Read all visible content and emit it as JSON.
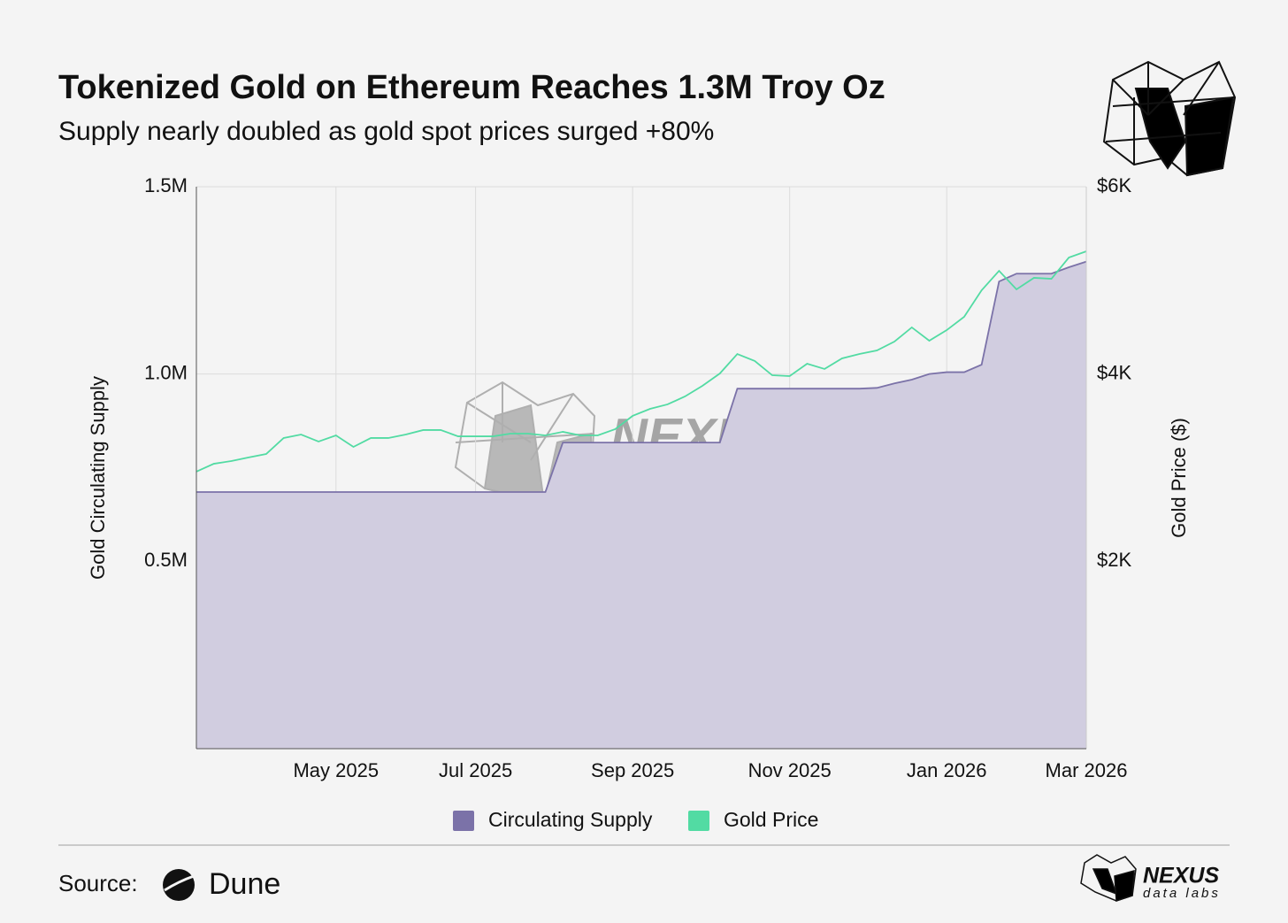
{
  "chart_data": {
    "type": "area-line",
    "title": "Tokenized Gold on Ethereum Reaches 1.3M Troy Oz",
    "subtitle": "Supply nearly doubled as gold spot prices surged +80%",
    "y_label": "Gold Circulating Supply",
    "y2_label": "Gold Price ($)",
    "categories": [
      null,
      null,
      null,
      null,
      null,
      null,
      null,
      null,
      "May 2025",
      null,
      null,
      null,
      null,
      null,
      null,
      null,
      "Jul 2025",
      null,
      null,
      null,
      null,
      null,
      null,
      null,
      null,
      "Sep 2025",
      null,
      null,
      null,
      null,
      null,
      null,
      null,
      null,
      "Nov 2025",
      null,
      null,
      null,
      null,
      null,
      null,
      null,
      null,
      "Jan 2026",
      null,
      null,
      null,
      null,
      null,
      null,
      null,
      "Mar 2026"
    ],
    "ylim": [
      0,
      1500000
    ],
    "yticks": [
      {
        "value": 500000,
        "label": "0.5M"
      },
      {
        "value": 1000000,
        "label": "1.0M"
      },
      {
        "value": 1500000,
        "label": "1.5M"
      }
    ],
    "y2lim": [
      0,
      6000
    ],
    "y2ticks": [
      {
        "value": 2000,
        "label": "$2K"
      },
      {
        "value": 4000,
        "label": "$4K"
      },
      {
        "value": 6000,
        "label": "$6K"
      }
    ],
    "grid": true,
    "legend": "bottom",
    "series": [
      {
        "name": "Circulating Supply",
        "color": "#7b72a8",
        "fill": "#d1cde0",
        "values": [
          685000,
          685000,
          685000,
          685000,
          685000,
          685000,
          685000,
          685000,
          685000,
          685000,
          685000,
          685000,
          685000,
          685000,
          685000,
          685000,
          685000,
          685000,
          685000,
          685000,
          685000,
          817000,
          817000,
          817000,
          817000,
          817000,
          817000,
          817000,
          817000,
          817000,
          817000,
          961000,
          961000,
          961000,
          961000,
          961000,
          961000,
          961000,
          961000,
          963000,
          975000,
          985000,
          1000000,
          1005000,
          1005000,
          1025000,
          1247000,
          1268000,
          1268000,
          1268000,
          1285000,
          1300000
        ]
      },
      {
        "name": "Gold Price",
        "color": "#52dba3",
        "axis": "y2",
        "values": [
          2958,
          3042,
          3071,
          3110,
          3146,
          3317,
          3354,
          3279,
          3345,
          3222,
          3317,
          3317,
          3354,
          3402,
          3402,
          3335,
          3335,
          3335,
          3364,
          3364,
          3345,
          3383,
          3345,
          3345,
          3411,
          3553,
          3628,
          3676,
          3761,
          3874,
          4006,
          4214,
          4139,
          3987,
          3978,
          4110,
          4054,
          4167,
          4214,
          4252,
          4346,
          4498,
          4356,
          4469,
          4611,
          4894,
          5102,
          4904,
          5027,
          5017,
          5244,
          5310
        ]
      }
    ]
  },
  "source": {
    "label": "Source:",
    "name": "Dune"
  },
  "logo": {
    "name": "NEXUS",
    "tagline": "data labs"
  }
}
